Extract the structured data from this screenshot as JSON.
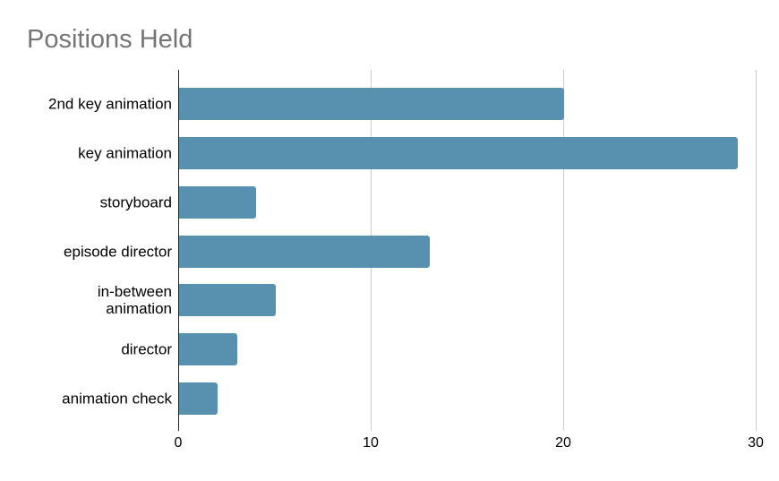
{
  "chart_data": {
    "type": "bar",
    "orientation": "horizontal",
    "title": "Positions Held",
    "categories": [
      "2nd key animation",
      "key animation",
      "storyboard",
      "episode director",
      "in-between animation",
      "director",
      "animation check"
    ],
    "labels_display": [
      "2nd key animation",
      "key animation",
      "storyboard",
      "episode director",
      "in-between\nanimation",
      "director",
      "animation check"
    ],
    "values": [
      20,
      29,
      4,
      13,
      5,
      3,
      2
    ],
    "x_ticks": [
      "0",
      "10",
      "20",
      "30"
    ],
    "xlim": [
      0,
      30
    ],
    "xlabel": "",
    "ylabel": "",
    "legend": "none",
    "grid": "vertical-gridlines-only",
    "colors": {
      "bar": "#5891af",
      "title": "#757575",
      "axis_line": "#212121",
      "gridline": "#cccccc",
      "label": "#000000",
      "background": "#ffffff"
    }
  }
}
